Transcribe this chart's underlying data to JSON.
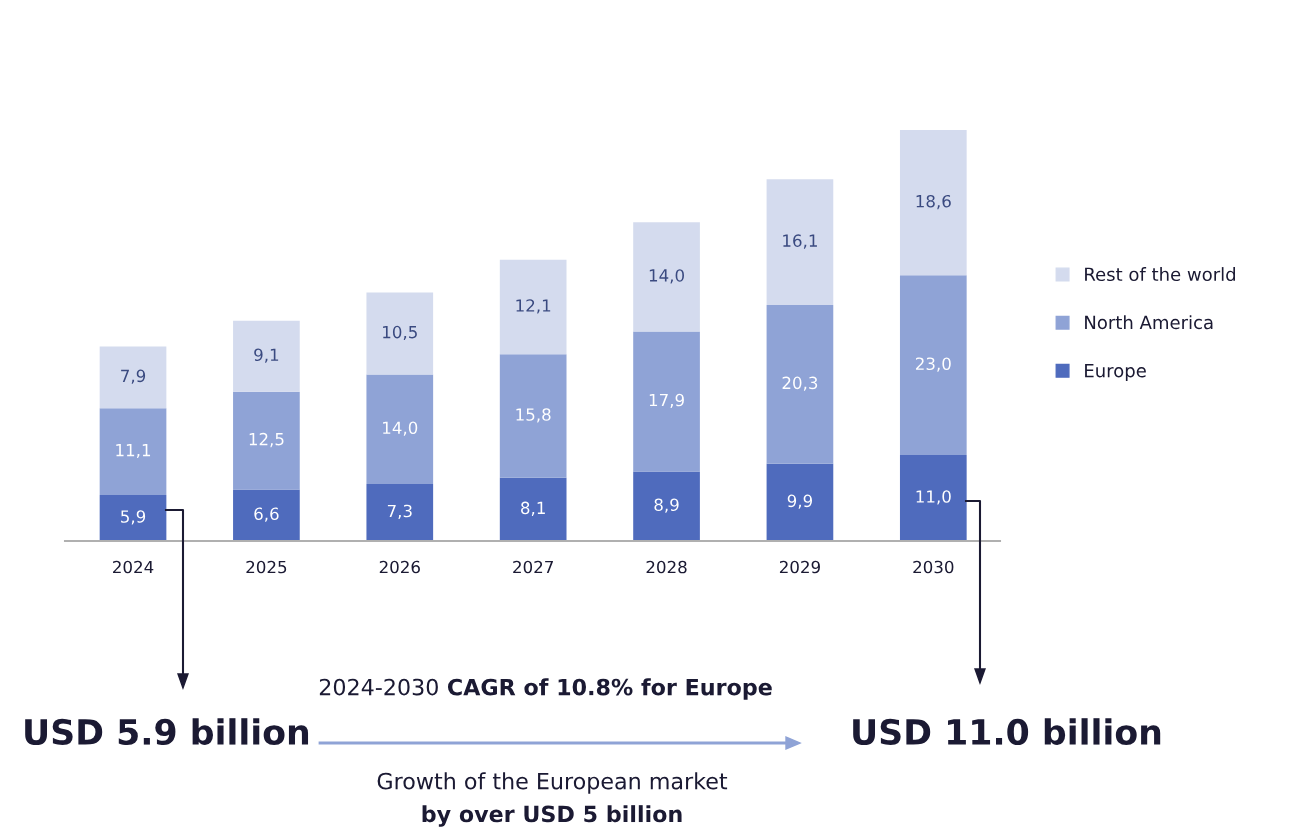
{
  "chart_data": {
    "type": "bar",
    "stacked": true,
    "categories": [
      "2024",
      "2025",
      "2026",
      "2027",
      "2028",
      "2029",
      "2030"
    ],
    "series": [
      {
        "name": "Europe",
        "color": "#4f6bbd",
        "values": [
          5.9,
          6.6,
          7.3,
          8.1,
          8.9,
          9.9,
          11.0
        ],
        "value_labels": [
          "5,9",
          "6,6",
          "7,3",
          "8,1",
          "8,9",
          "9,9",
          "11,0"
        ]
      },
      {
        "name": "North America",
        "color": "#8fa3d6",
        "values": [
          11.1,
          12.5,
          14.0,
          15.8,
          17.9,
          20.3,
          23.0
        ],
        "value_labels": [
          "11,1",
          "12,5",
          "14,0",
          "15,8",
          "17,9",
          "20,3",
          "23,0"
        ]
      },
      {
        "name": "Rest of the world",
        "color": "#d4dbee",
        "values": [
          7.9,
          9.1,
          10.5,
          12.1,
          14.0,
          16.1,
          18.6
        ],
        "value_labels": [
          "7,9",
          "9,1",
          "10,5",
          "12,1",
          "14,0",
          "16,1",
          "18,6"
        ]
      }
    ],
    "legend": "right",
    "grid": false,
    "tick_labels": "x",
    "annotations": [
      "USD 5.9 billion",
      "USD 11.0 billion",
      "2024-2030 CAGR of 10.8% for Europe",
      "Growth of the European market\nby over USD 5 billion"
    ]
  }
}
